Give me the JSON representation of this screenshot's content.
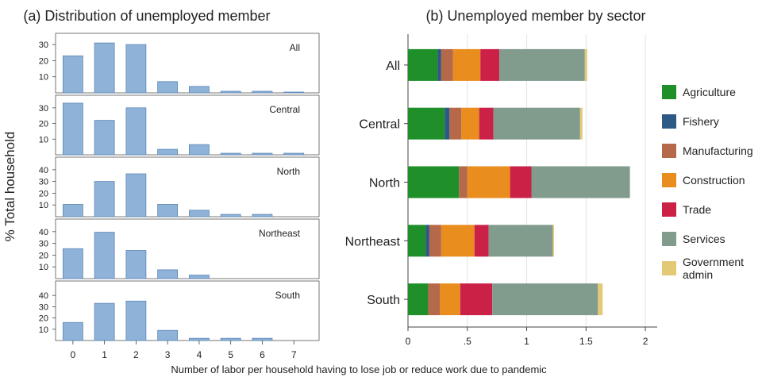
{
  "figure": {
    "ylabel_shared": "% Total household",
    "xlabel_shared": "Number of labor per household having to lose job or reduce work due to pandemic"
  },
  "chart_data": [
    {
      "type": "bar",
      "title": "(a) Distribution of unemployed member",
      "categories": [
        "0",
        "1",
        "2",
        "3",
        "4",
        "5",
        "6",
        "7"
      ],
      "panels": [
        {
          "name": "All",
          "yticks": [
            10,
            20,
            30
          ],
          "ylim": [
            0,
            35
          ],
          "values": [
            23,
            31,
            30,
            7,
            4,
            1,
            1,
            0.5
          ]
        },
        {
          "name": "Central",
          "yticks": [
            10,
            20,
            30
          ],
          "ylim": [
            0,
            36
          ],
          "values": [
            33,
            22,
            30,
            3.5,
            6.5,
            1,
            1,
            1
          ]
        },
        {
          "name": "North",
          "yticks": [
            10,
            20,
            30,
            40
          ],
          "ylim": [
            0,
            48
          ],
          "values": [
            10.5,
            30,
            36.5,
            10.5,
            5.5,
            2,
            2,
            0
          ]
        },
        {
          "name": "Northeast",
          "yticks": [
            10,
            20,
            30,
            40
          ],
          "ylim": [
            0,
            48
          ],
          "values": [
            25.5,
            39.5,
            24,
            7.5,
            3,
            0,
            0,
            0
          ]
        },
        {
          "name": "South",
          "yticks": [
            10,
            20,
            30,
            40
          ],
          "ylim": [
            0,
            50
          ],
          "values": [
            16,
            33,
            35,
            9,
            2,
            2,
            2,
            0
          ]
        }
      ],
      "color": "#8fb2d9"
    },
    {
      "type": "bar",
      "orientation": "horizontal",
      "stacked": true,
      "title": "(b) Unemployed member by sector",
      "categories": [
        "All",
        "Central",
        "North",
        "Northeast",
        "South"
      ],
      "xlim": [
        0,
        2.1
      ],
      "xticks": [
        0,
        0.5,
        1,
        1.5,
        2
      ],
      "xtick_labels": [
        "0",
        ".5",
        "1",
        "1.5",
        "2"
      ],
      "legend_position": "right",
      "series": [
        {
          "name": "Agriculture",
          "color": "#1f8f2a",
          "values": [
            0.25,
            0.31,
            0.43,
            0.15,
            0.17
          ]
        },
        {
          "name": "Fishery",
          "color": "#2d5986",
          "values": [
            0.03,
            0.04,
            0.0,
            0.03,
            0.0
          ]
        },
        {
          "name": "Manufacturing",
          "color": "#b5694a",
          "values": [
            0.1,
            0.1,
            0.07,
            0.1,
            0.1
          ]
        },
        {
          "name": "Construction",
          "color": "#e88d1e",
          "values": [
            0.23,
            0.15,
            0.36,
            0.28,
            0.17
          ]
        },
        {
          "name": "Trade",
          "color": "#cc2147",
          "values": [
            0.16,
            0.12,
            0.18,
            0.12,
            0.27
          ]
        },
        {
          "name": "Services",
          "color": "#819b8d",
          "values": [
            0.72,
            0.73,
            0.83,
            0.54,
            0.89
          ]
        },
        {
          "name": "Government admin",
          "color": "#e3c876",
          "values": [
            0.02,
            0.02,
            0.0,
            0.01,
            0.04
          ]
        }
      ]
    }
  ]
}
